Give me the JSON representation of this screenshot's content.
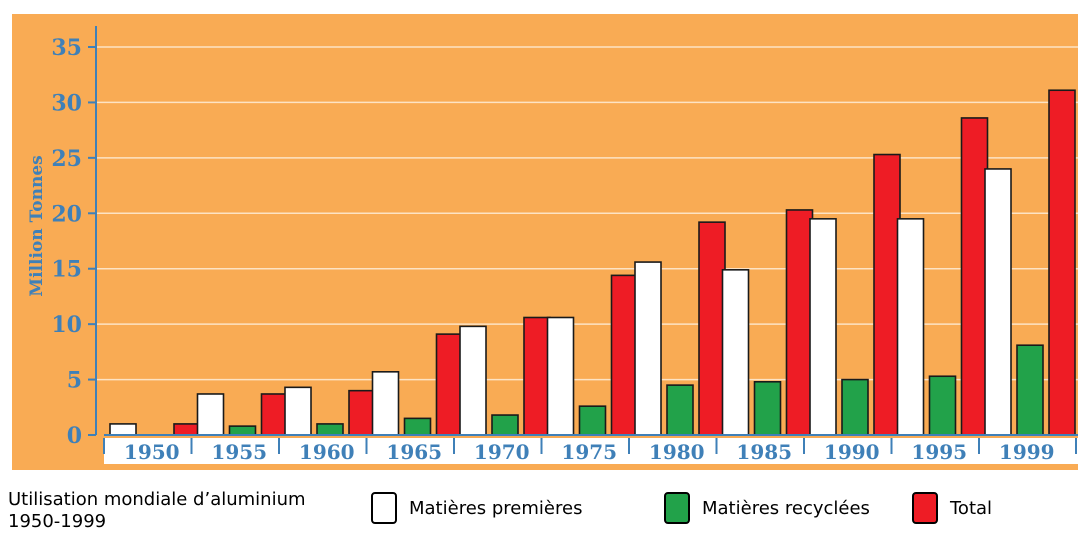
{
  "chart_data": {
    "type": "bar",
    "categories": [
      "1950",
      "1955",
      "1960",
      "1965",
      "1970",
      "1975",
      "1980",
      "1985",
      "1990",
      "1995",
      "1999"
    ],
    "series": [
      {
        "name": "Matières premières",
        "color": "#ffffff",
        "values": [
          1.0,
          3.7,
          4.3,
          5.7,
          9.8,
          10.6,
          15.6,
          14.9,
          19.5,
          19.5,
          24.0
        ]
      },
      {
        "name": "Matières recyclées",
        "color": "#22a24a",
        "values": [
          0.0,
          0.8,
          1.0,
          1.5,
          1.8,
          2.6,
          4.5,
          4.8,
          5.0,
          5.3,
          8.1
        ]
      },
      {
        "name": "Total",
        "color": "#ee1c25",
        "values": [
          1.0,
          3.7,
          4.0,
          9.1,
          10.6,
          14.4,
          19.2,
          20.3,
          25.3,
          28.6,
          31.1
        ]
      }
    ],
    "ylabel": "Million Tonnes",
    "ylim": [
      0,
      35
    ],
    "yticks": [
      "0",
      "5",
      "10",
      "15",
      "20",
      "25",
      "30",
      "35"
    ],
    "grid": true,
    "background": "#f9ab54",
    "axis_color": "#3f80b8"
  },
  "legend": {
    "caption_line1": "Utilisation mondiale d’aluminium",
    "caption_line2": "1950-1999",
    "items": [
      {
        "label": "Matières premières",
        "color": "#ffffff"
      },
      {
        "label": "Matières recyclées",
        "color": "#22a24a"
      },
      {
        "label": "Total",
        "color": "#ee1c25"
      }
    ]
  }
}
